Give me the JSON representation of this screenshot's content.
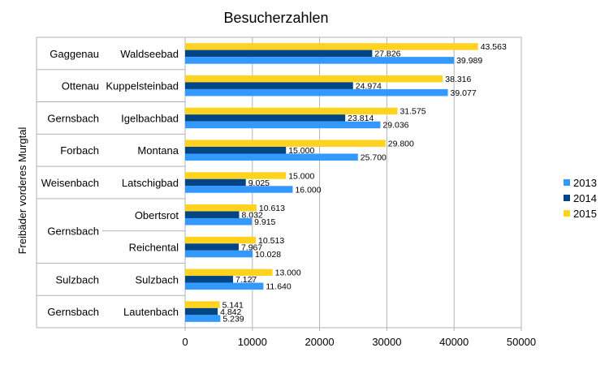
{
  "chart_data": {
    "type": "bar",
    "orientation": "horizontal",
    "title": "Besucherzahlen",
    "ylabel": "Freibäder vorderes Murgtal",
    "xlabel": "",
    "xlim": [
      0,
      50000
    ],
    "xticks": [
      "0",
      "10000",
      "20000",
      "30000",
      "40000",
      "50000"
    ],
    "grid": true,
    "legend_position": "right",
    "groups": [
      {
        "town": "Gaggenau",
        "pools": [
          "Waldseebad"
        ]
      },
      {
        "town": "Ottenau",
        "pools": [
          "Kuppelsteinbad"
        ]
      },
      {
        "town": "Gernsbach",
        "pools": [
          "Igelbachbad"
        ]
      },
      {
        "town": "Forbach",
        "pools": [
          "Montana"
        ]
      },
      {
        "town": "Weisenbach",
        "pools": [
          "Latschigbad"
        ]
      },
      {
        "town": "Gernsbach",
        "pools": [
          "Obertsrot",
          "Reichental"
        ]
      },
      {
        "town": "Sulzbach",
        "pools": [
          "Sulzbach"
        ]
      },
      {
        "town": "Gernsbach",
        "pools": [
          "Lautenbach"
        ]
      }
    ],
    "categories": [
      "Waldseebad",
      "Kuppelsteinbad",
      "Igelbachbad",
      "Montana",
      "Latschigbad",
      "Obertsrot",
      "Reichental",
      "Sulzbach",
      "Lautenbach"
    ],
    "series": [
      {
        "name": "2015",
        "color": "#FFD320",
        "values": [
          43563,
          38316,
          31575,
          29800,
          15000,
          10613,
          10513,
          13000,
          5141
        ],
        "labels": [
          "43.563",
          "38.316",
          "31.575",
          "29.800",
          "15.000",
          "10.613",
          "10.513",
          "13.000",
          "5.141"
        ]
      },
      {
        "name": "2014",
        "color": "#004586",
        "values": [
          27826,
          24974,
          23814,
          15000,
          9025,
          8032,
          7967,
          7127,
          4842
        ],
        "labels": [
          "27.826",
          "24.974",
          "23.814",
          "15.000",
          "9.025",
          "8.032",
          "7.967",
          "7.127",
          "4.842"
        ]
      },
      {
        "name": "2013",
        "color": "#3399FF",
        "values": [
          39989,
          39077,
          29036,
          25700,
          16000,
          9915,
          10028,
          11640,
          5239
        ],
        "labels": [
          "39.989",
          "39.077",
          "29.036",
          "25.700",
          "16.000",
          "9.915",
          "10.028",
          "11.640",
          "5.239"
        ]
      }
    ],
    "legend": [
      {
        "name": "2013",
        "color": "#3399FF"
      },
      {
        "name": "2014",
        "color": "#004586"
      },
      {
        "name": "2015",
        "color": "#FFD320"
      }
    ]
  }
}
